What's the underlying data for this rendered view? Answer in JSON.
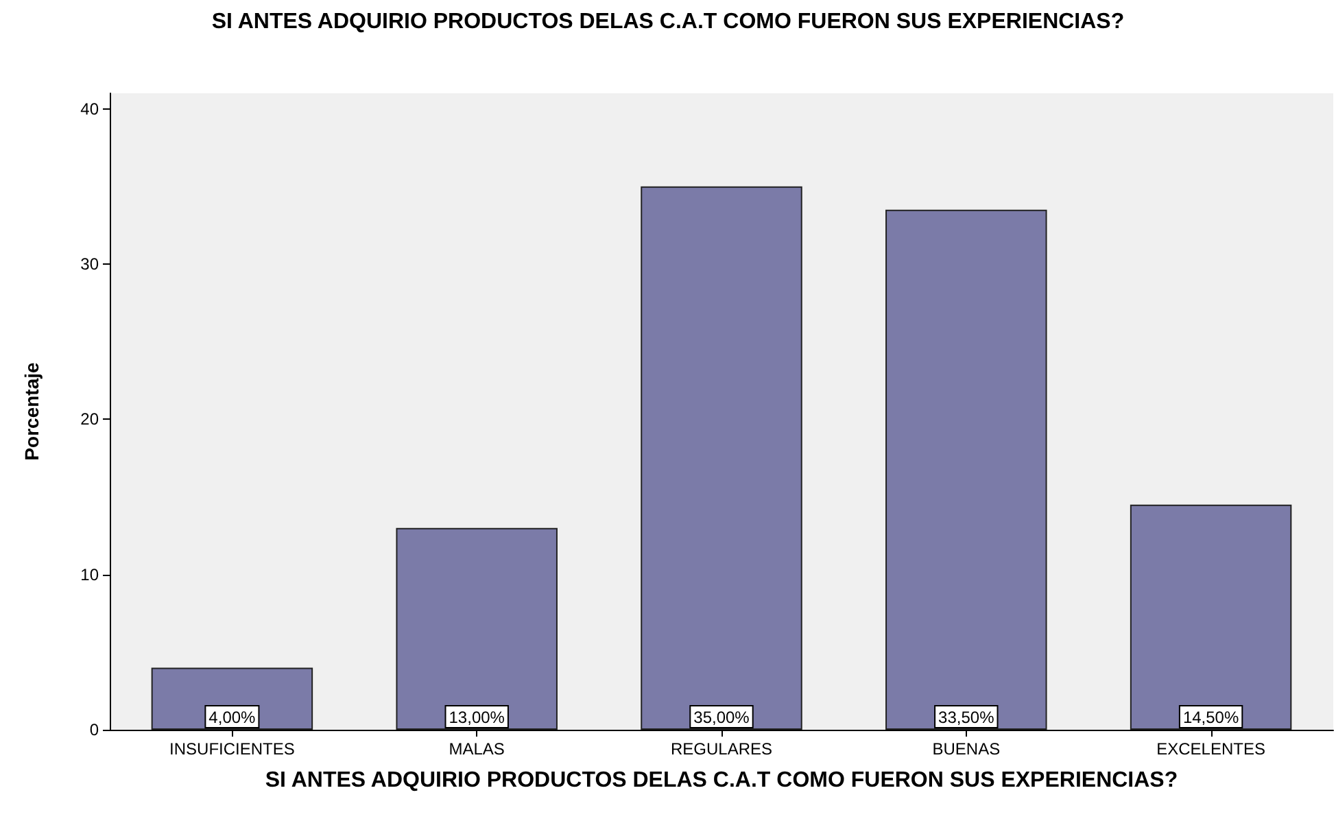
{
  "chart_data": {
    "type": "bar",
    "title": "SI ANTES ADQUIRIO PRODUCTOS DELAS C.A.T COMO FUERON SUS EXPERIENCIAS?",
    "xlabel": "SI ANTES ADQUIRIO PRODUCTOS DELAS C.A.T COMO FUERON SUS EXPERIENCIAS?",
    "ylabel": "Porcentaje",
    "categories": [
      "INSUFICIENTES",
      "MALAS",
      "REGULARES",
      "BUENAS",
      "EXCELENTES"
    ],
    "values": [
      4,
      13,
      35,
      33.5,
      14.5
    ],
    "value_labels": [
      "4,00%",
      "13,00%",
      "35,00%",
      "33,50%",
      "14,50%"
    ],
    "color": "#7b7ba8",
    "ylim": [
      0,
      41
    ],
    "yticks": [
      0,
      10,
      20,
      30,
      40
    ],
    "grid": false
  }
}
